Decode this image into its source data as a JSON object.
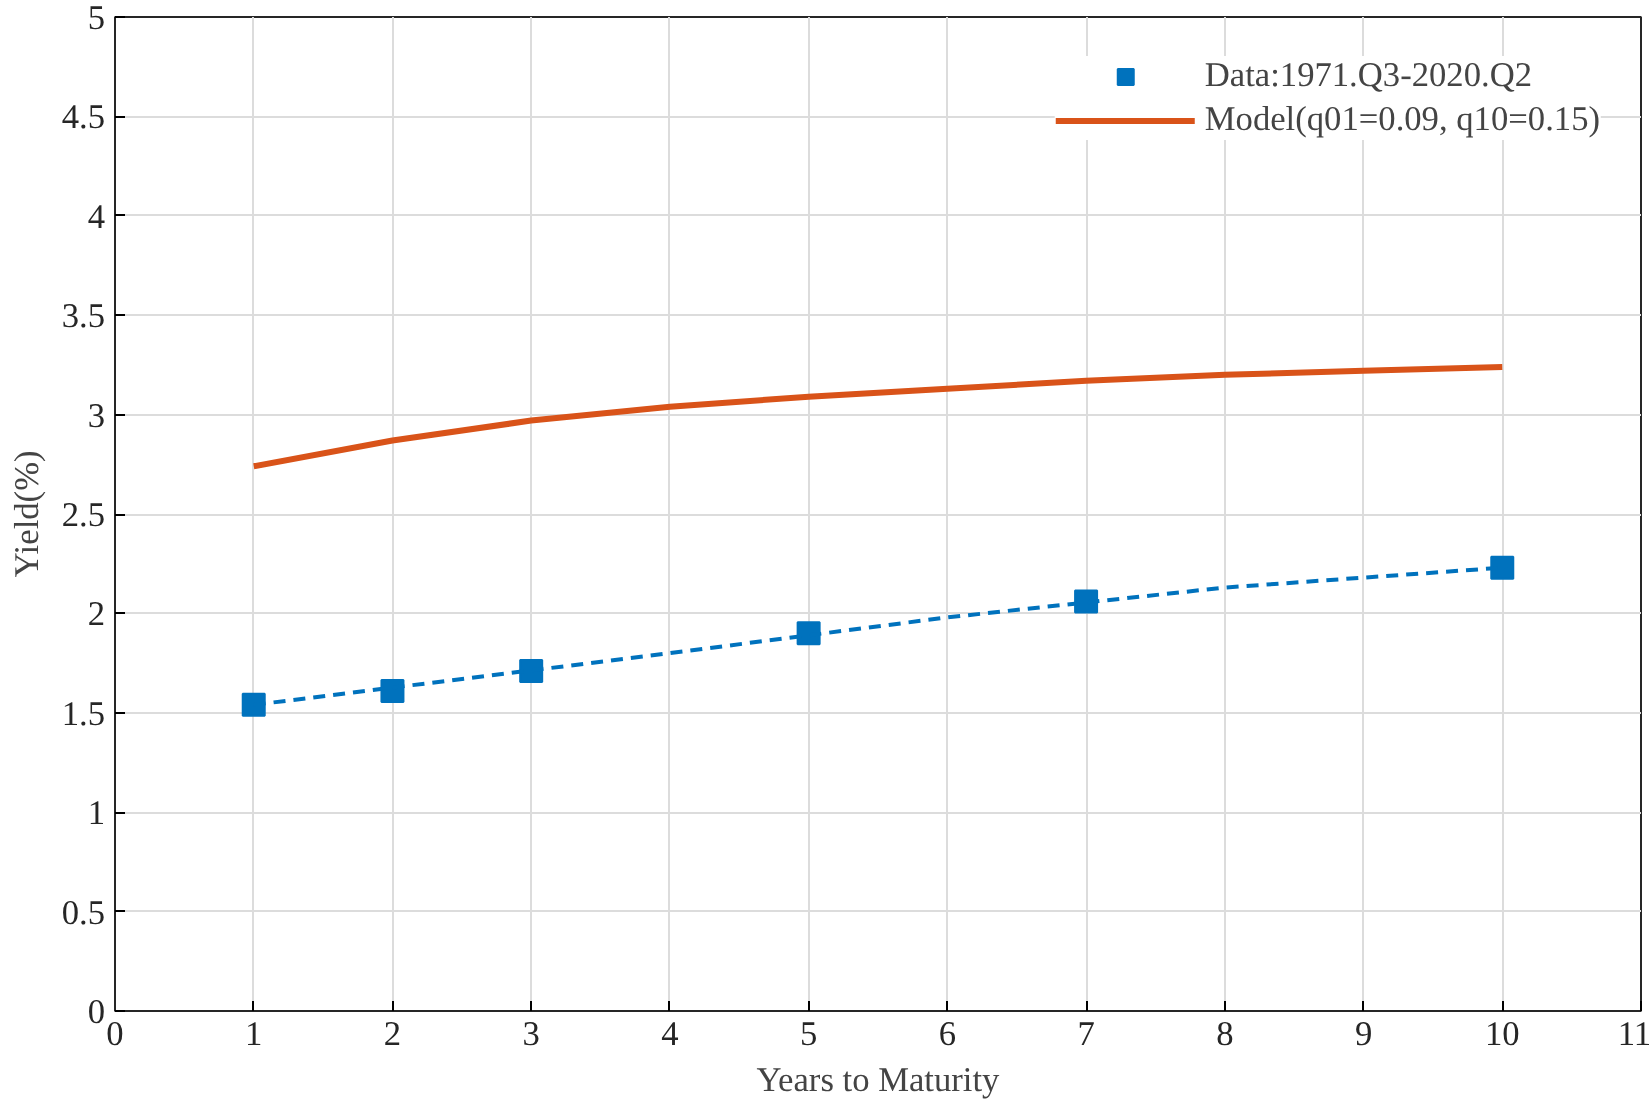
{
  "chart_data": {
    "type": "line",
    "xlabel": "Years to Maturity",
    "ylabel": "Yield(%)",
    "xlim": [
      0,
      11
    ],
    "ylim": [
      0,
      5
    ],
    "xticks": [
      0,
      1,
      2,
      3,
      4,
      5,
      6,
      7,
      8,
      9,
      10,
      11
    ],
    "yticks": [
      0,
      0.5,
      1,
      1.5,
      2,
      2.5,
      3,
      3.5,
      4,
      4.5,
      5
    ],
    "grid": true,
    "legend": "top right",
    "series": [
      {
        "name": "Data:1971.Q3-2020.Q2",
        "type": "scatter",
        "marker": "square",
        "color": "#0072bd",
        "x": [
          1,
          2,
          3,
          5,
          7,
          10
        ],
        "values": [
          1.54,
          1.61,
          1.71,
          1.9,
          2.06,
          2.23
        ]
      },
      {
        "name": "Model(q01=0.09, q10=0.15)",
        "line_style": "solid",
        "color": "#d95319",
        "x": [
          1,
          2,
          3,
          4,
          5,
          6,
          7,
          8,
          9,
          10
        ],
        "values": [
          2.74,
          2.87,
          2.97,
          3.04,
          3.09,
          3.13,
          3.17,
          3.2,
          3.22,
          3.24
        ]
      },
      {
        "line_style": "dashed",
        "color": "#0072bd",
        "x": [
          1,
          4,
          6,
          8,
          10
        ],
        "values": [
          1.54,
          1.8,
          1.98,
          2.13,
          2.23
        ]
      }
    ]
  }
}
